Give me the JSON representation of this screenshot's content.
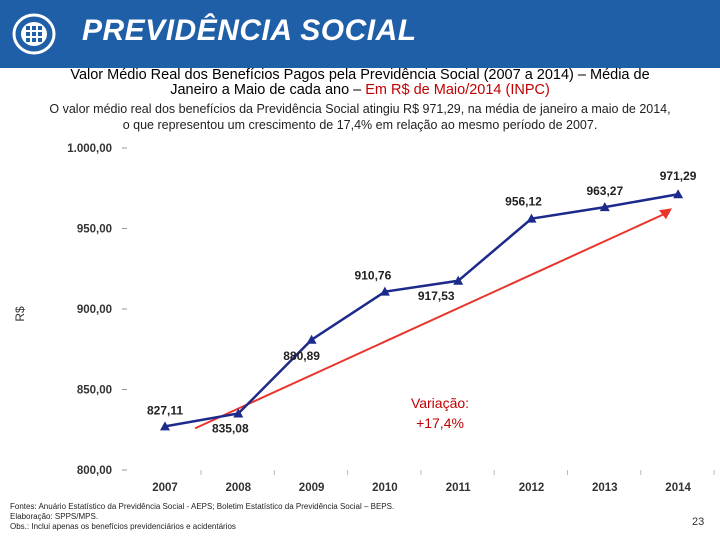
{
  "header": {
    "brand": "PREVIDÊNCIA SOCIAL"
  },
  "slide": {
    "title_line1": "Valor Médio Real dos Benefícios Pagos pela Previdência Social (2007 a 2014) – Média de",
    "title_line2_prefix": "Janeiro a Maio de cada ano – ",
    "title_line2_highlight": "Em R$ de Maio/2014 (INPC)",
    "subtitle_line1": "O valor médio real dos benefícios da Previdência Social atingiu R$ 971,29, na média de janeiro a maio de 2014,",
    "subtitle_line2": "o que representou um crescimento de 17,4% em relação ao mesmo período de 2007.",
    "footer_line1": "Fontes: Anuário Estatístico da Previdência Social - AEPS; Boletim Estatístico da Previdência Social – BEPS.",
    "footer_line2": "Elaboração: SPPS/MPS.",
    "footer_line3": "Obs.: Inclui apenas os benefícios previdenciários e acidentários",
    "page_number": "23"
  },
  "colors": {
    "header_bg": "#1f5fa8",
    "series": "#1c2a8c",
    "arrow": "#e8362d",
    "highlight": "#c00000"
  },
  "chart_data": {
    "type": "line",
    "title": "Valor Médio Real dos Benefícios Pagos pela Previdência Social (2007 a 2014)",
    "xlabel": "",
    "ylabel": "R$",
    "categories": [
      "2007",
      "2008",
      "2009",
      "2010",
      "2011",
      "2012",
      "2013",
      "2014"
    ],
    "series": [
      {
        "name": "Valor médio real (R$)",
        "values": [
          827.11,
          835.08,
          880.89,
          910.76,
          917.53,
          956.12,
          963.27,
          971.29
        ],
        "labels": [
          "827,11",
          "835,08",
          "880,89",
          "910,76",
          "917,53",
          "956,12",
          "963,27",
          "971,29"
        ]
      }
    ],
    "ylim": [
      800,
      1000
    ],
    "yticks": [
      {
        "value": 800,
        "label": "800,00"
      },
      {
        "value": 850,
        "label": "850,00"
      },
      {
        "value": 900,
        "label": "900,00"
      },
      {
        "value": 950,
        "label": "950,00"
      },
      {
        "value": 1000,
        "label": "1.000,00"
      }
    ],
    "annotation": {
      "line1": "Variação:",
      "line2": "+17,4%"
    }
  }
}
